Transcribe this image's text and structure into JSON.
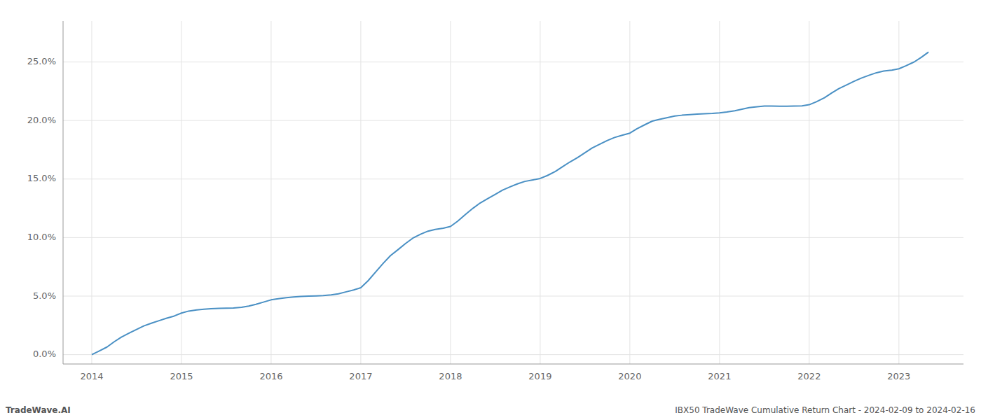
{
  "chart_data": {
    "type": "line",
    "title": "IBX50 TradeWave Cumulative Return Chart - 2024-02-09 to 2024-02-16",
    "annotations": [
      "TradeWave.AI"
    ],
    "color": "#4a90c4",
    "grid": true,
    "x": [
      2014.0,
      2014.08,
      2014.17,
      2014.25,
      2014.33,
      2014.42,
      2014.5,
      2014.58,
      2014.67,
      2014.75,
      2014.83,
      2014.92,
      2015.0,
      2015.08,
      2015.17,
      2015.25,
      2015.33,
      2015.42,
      2015.5,
      2015.58,
      2015.67,
      2015.75,
      2015.83,
      2015.92,
      2016.0,
      2016.08,
      2016.17,
      2016.25,
      2016.33,
      2016.42,
      2016.5,
      2016.58,
      2016.67,
      2016.75,
      2016.83,
      2016.92,
      2017.0,
      2017.08,
      2017.17,
      2017.25,
      2017.33,
      2017.42,
      2017.5,
      2017.58,
      2017.67,
      2017.75,
      2017.83,
      2017.92,
      2018.0,
      2018.08,
      2018.17,
      2018.25,
      2018.33,
      2018.42,
      2018.5,
      2018.58,
      2018.67,
      2018.75,
      2018.83,
      2018.92,
      2019.0,
      2019.08,
      2019.17,
      2019.25,
      2019.33,
      2019.42,
      2019.5,
      2019.58,
      2019.67,
      2019.75,
      2019.83,
      2019.92,
      2020.0,
      2020.08,
      2020.17,
      2020.25,
      2020.33,
      2020.42,
      2020.5,
      2020.58,
      2020.67,
      2020.75,
      2020.83,
      2020.92,
      2021.0,
      2021.08,
      2021.17,
      2021.25,
      2021.33,
      2021.42,
      2021.5,
      2021.58,
      2021.67,
      2021.75,
      2021.83,
      2021.92,
      2022.0,
      2022.08,
      2022.17,
      2022.25,
      2022.33,
      2022.42,
      2022.5,
      2022.58,
      2022.67,
      2022.75,
      2022.83,
      2022.92,
      2023.0,
      2023.08,
      2023.17,
      2023.25,
      2023.33
    ],
    "values": [
      0.0,
      0.3,
      0.65,
      1.1,
      1.5,
      1.85,
      2.15,
      2.45,
      2.7,
      2.9,
      3.1,
      3.3,
      3.55,
      3.72,
      3.82,
      3.88,
      3.92,
      3.95,
      3.97,
      3.99,
      4.05,
      4.15,
      4.3,
      4.5,
      4.68,
      4.78,
      4.86,
      4.92,
      4.97,
      5.0,
      5.02,
      5.05,
      5.1,
      5.2,
      5.35,
      5.52,
      5.72,
      6.3,
      7.1,
      7.8,
      8.45,
      9.0,
      9.5,
      9.95,
      10.3,
      10.55,
      10.7,
      10.8,
      10.95,
      11.4,
      12.0,
      12.5,
      12.95,
      13.35,
      13.7,
      14.05,
      14.35,
      14.6,
      14.8,
      14.93,
      15.05,
      15.3,
      15.65,
      16.05,
      16.45,
      16.85,
      17.25,
      17.65,
      18.0,
      18.3,
      18.55,
      18.75,
      18.92,
      19.3,
      19.65,
      19.95,
      20.1,
      20.25,
      20.38,
      20.45,
      20.5,
      20.55,
      20.58,
      20.6,
      20.65,
      20.72,
      20.83,
      20.97,
      21.1,
      21.18,
      21.23,
      21.23,
      21.22,
      21.22,
      21.23,
      21.25,
      21.35,
      21.6,
      21.95,
      22.35,
      22.72,
      23.05,
      23.35,
      23.62,
      23.87,
      24.08,
      24.22,
      24.3,
      24.42,
      24.68,
      25.0,
      25.4,
      25.85
    ],
    "xlim": [
      2013.68,
      2023.72
    ],
    "xticks": [
      2014,
      2015,
      2016,
      2017,
      2018,
      2019,
      2020,
      2021,
      2022,
      2023
    ],
    "ylim": [
      -0.8,
      28.5
    ],
    "yticks": [
      {
        "value": 0.0,
        "label": "0.0%"
      },
      {
        "value": 5.0,
        "label": "5.0%"
      },
      {
        "value": 10.0,
        "label": "10.0%"
      },
      {
        "value": 15.0,
        "label": "15.0%"
      },
      {
        "value": 20.0,
        "label": "20.0%"
      },
      {
        "value": 25.0,
        "label": "25.0%"
      }
    ]
  }
}
